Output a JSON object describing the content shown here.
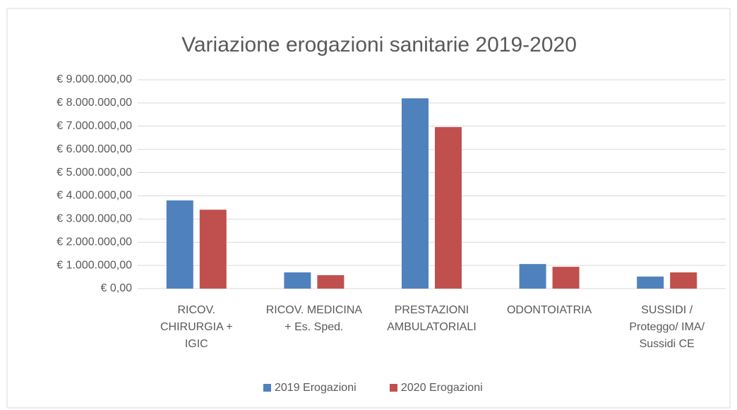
{
  "chart_data": {
    "type": "bar",
    "title": "Variazione erogazioni sanitarie 2019-2020",
    "categories": [
      "RICOV. CHIRURGIA + IGIC",
      "RICOV. MEDICINA + Es. Sped.",
      "PRESTAZIONI AMBULATORIALI",
      "ODONTOIATRIA",
      "SUSSIDI / Proteggo/ IMA/ Sussidi CE"
    ],
    "series": [
      {
        "name": "2019 Erogazioni",
        "color": "#4f81bd",
        "values": [
          3800000,
          700000,
          8200000,
          1060000,
          520000
        ]
      },
      {
        "name": "2020 Erogazioni",
        "color": "#c0504d",
        "values": [
          3400000,
          580000,
          6960000,
          940000,
          700000
        ]
      }
    ],
    "ylim": [
      0,
      9000000
    ],
    "yticks": [
      {
        "value": 0,
        "label": "€ 0,00"
      },
      {
        "value": 1000000,
        "label": "€ 1.000.000,00"
      },
      {
        "value": 2000000,
        "label": "€ 2.000.000,00"
      },
      {
        "value": 3000000,
        "label": "€ 3.000.000,00"
      },
      {
        "value": 4000000,
        "label": "€ 4.000.000,00"
      },
      {
        "value": 5000000,
        "label": "€ 5.000.000,00"
      },
      {
        "value": 6000000,
        "label": "€ 6.000.000,00"
      },
      {
        "value": 7000000,
        "label": "€ 7.000.000,00"
      },
      {
        "value": 8000000,
        "label": "€ 8.000.000,00"
      },
      {
        "value": 9000000,
        "label": "€ 9.000.000,00"
      }
    ],
    "grid": true,
    "legend": "bottom"
  }
}
